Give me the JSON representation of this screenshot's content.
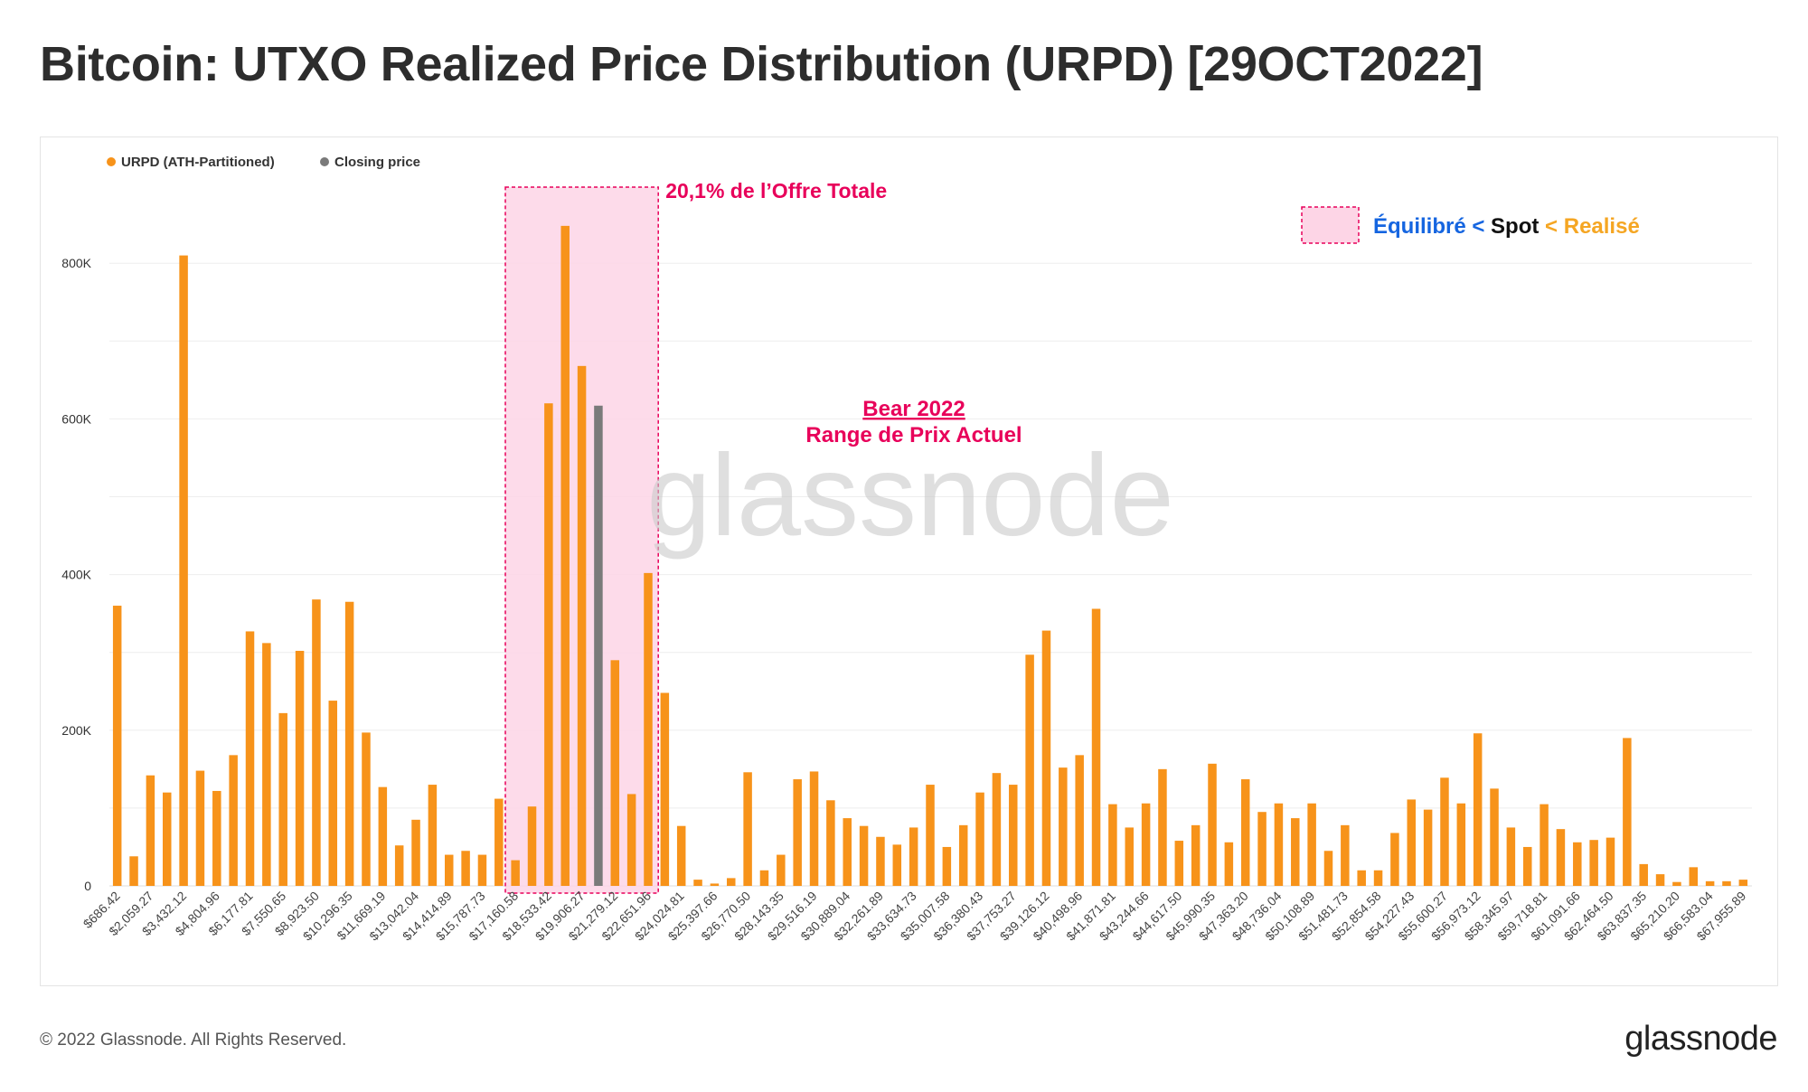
{
  "title": "Bitcoin: UTXO Realized Price Distribution (URPD) [29OCT2022]",
  "footer": {
    "copyright": "© 2022 Glassnode. All Rights Reserved.",
    "logo": "glassnode"
  },
  "watermark": "glassnode",
  "colors": {
    "bar": "#F7931A",
    "closing": "#7a7a7a",
    "highlight": "#E8005A",
    "highlight_fill": "#FDD5E6",
    "blue": "#1565E0",
    "orange": "#F5A623",
    "black": "#111111"
  },
  "annotations": {
    "box_label": "20,1% de l’Offre Totale",
    "bear_title": "Bear 2022",
    "bear_subtitle": "Range de Prix Actuel",
    "legend_equilibre": "Équilibré",
    "legend_lt1": " < ",
    "legend_spot": "Spot",
    "legend_lt2": " < ",
    "legend_realise": "Realisé"
  },
  "chart_data": {
    "type": "bar",
    "legend": [
      {
        "name": "URPD (ATH-Partitioned)",
        "color": "#F7931A"
      },
      {
        "name": "Closing price",
        "color": "#7a7a7a"
      }
    ],
    "yticks": [
      "0",
      "200K",
      "400K",
      "600K",
      "800K"
    ],
    "ylim": [
      0,
      900000
    ],
    "tick_labels": [
      "$686.42",
      "$2,059.27",
      "$3,432.12",
      "$4,804.96",
      "$6,177.81",
      "$7,550.65",
      "$8,923.50",
      "$10,296.35",
      "$11,669.19",
      "$13,042.04",
      "$14,414.89",
      "$15,787.73",
      "$17,160.58",
      "$18,533.42",
      "$19,906.27",
      "$21,279.12",
      "$22,651.96",
      "$24,024.81",
      "$25,397.66",
      "$26,770.50",
      "$28,143.35",
      "$29,516.19",
      "$30,889.04",
      "$32,261.89",
      "$33,634.73",
      "$35,007.58",
      "$36,380.43",
      "$37,753.27",
      "$39,126.12",
      "$40,498.96",
      "$41,871.81",
      "$43,244.66",
      "$44,617.50",
      "$45,990.35",
      "$47,363.20",
      "$48,736.04",
      "$50,108.89",
      "$51,481.73",
      "$52,854.58",
      "$54,227.43",
      "$55,600.27",
      "$56,973.12",
      "$58,345.97",
      "$59,718.81",
      "$61,091.66",
      "$62,464.50",
      "$63,837.35",
      "$65,210.20",
      "$66,583.04",
      "$67,955.89"
    ],
    "values": [
      360000,
      38000,
      142000,
      120000,
      810000,
      148000,
      122000,
      168000,
      327000,
      312000,
      222000,
      302000,
      368000,
      238000,
      365000,
      197000,
      127000,
      52000,
      85000,
      130000,
      40000,
      45000,
      40000,
      112000,
      33000,
      102000,
      620000,
      848000,
      668000,
      617000,
      290000,
      118000,
      402000,
      248000,
      77000,
      8000,
      3000,
      10000,
      146000,
      20000,
      40000,
      137000,
      147000,
      110000,
      87000,
      77000,
      63000,
      53000,
      75000,
      130000,
      50000,
      78000,
      120000,
      145000,
      130000,
      297000,
      328000,
      152000,
      168000,
      356000,
      105000,
      75000,
      106000,
      150000,
      58000,
      78000,
      157000,
      56000,
      137000,
      95000,
      106000,
      87000,
      106000,
      45000,
      78000,
      20000,
      20000,
      68000,
      111000,
      98000,
      139000,
      106000,
      196000,
      125000,
      75000,
      50000,
      105000,
      73000,
      56000,
      59000,
      62000,
      190000,
      28000,
      15000,
      5000,
      24000,
      6000,
      6000,
      8000
    ],
    "closing_index": 29,
    "highlight_range": [
      "$17,160.58",
      "$22,651.96"
    ]
  }
}
